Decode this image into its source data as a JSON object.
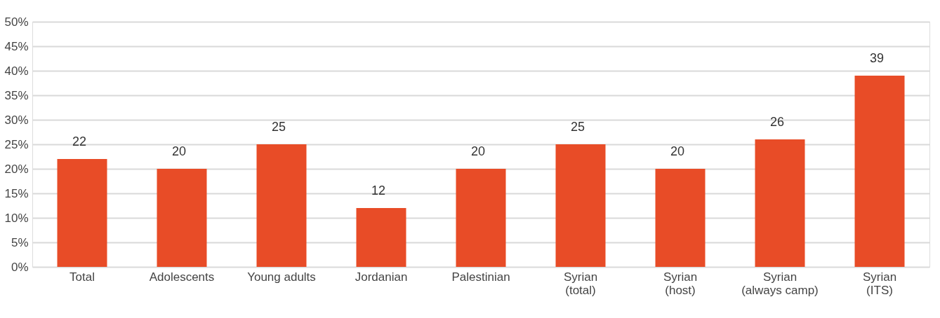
{
  "chart_data": {
    "type": "bar",
    "categories": [
      "Total",
      "Adolescents",
      "Young adults",
      "Jordanian",
      "Palestinian",
      "Syrian (total)",
      "Syrian (host)",
      "Syrian (always camp)",
      "Syrian (ITS)"
    ],
    "values": [
      22,
      20,
      25,
      12,
      20,
      25,
      20,
      26,
      39
    ],
    "color": "#e84c27",
    "ylim": [
      0,
      50
    ],
    "yticks": [
      {
        "value": 0,
        "label": "0%"
      },
      {
        "value": 5,
        "label": "5%"
      },
      {
        "value": 10,
        "label": "10%"
      },
      {
        "value": 15,
        "label": "15%"
      },
      {
        "value": 20,
        "label": "20%"
      },
      {
        "value": 25,
        "label": "25%"
      },
      {
        "value": 30,
        "label": "30%"
      },
      {
        "value": 35,
        "label": "35%"
      },
      {
        "value": 40,
        "label": "40%"
      },
      {
        "value": 45,
        "label": "45%"
      },
      {
        "value": 50,
        "label": "50%"
      }
    ],
    "grid": "y",
    "data_labels": true
  }
}
